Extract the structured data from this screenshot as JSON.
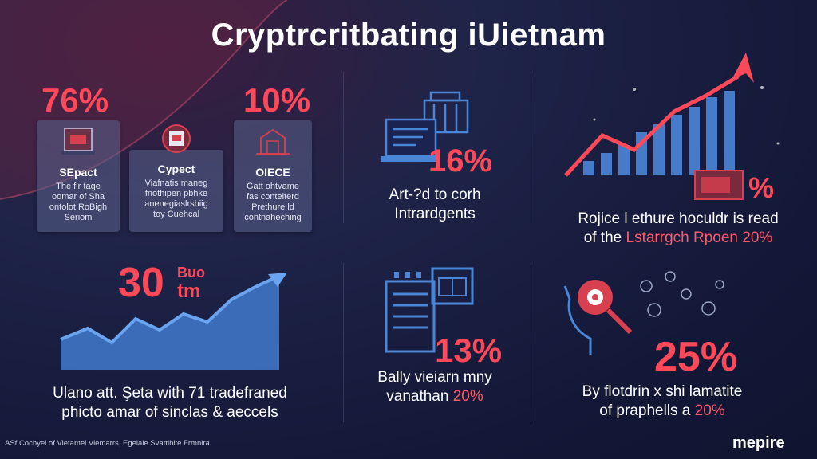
{
  "title": "Cryptrcritbating iUietnam",
  "panel1": {
    "cards": [
      {
        "pct": "76%",
        "title": "SEpact",
        "body": [
          "The fir tage",
          "oomar of Sha",
          "ontolot RoBigh",
          "Seriom"
        ]
      },
      {
        "pct": "",
        "title": "Cypect",
        "body": [
          "Viafnatis maneg",
          "fnothipen pbhke",
          "anenegiaslrshiig",
          "toy Cuehcal"
        ]
      },
      {
        "pct": "10%",
        "title": "OIECE",
        "body": [
          "Gatt ohtvame",
          "fas contelterd",
          "Prethure ld",
          "contnaheching"
        ]
      }
    ]
  },
  "panel2": {
    "pct": "16%",
    "caption": [
      "Art-?d to corh",
      "Intrardgents"
    ]
  },
  "panel3": {
    "pct": "%",
    "caption_l1": "Rojice l ethure hoculdr is read",
    "caption_l2a": "of the",
    "caption_l2b": "Lstarrgch Rpoen 20%"
  },
  "panel4": {
    "pct": "30",
    "pct_small_1": "Buo",
    "pct_small_2": "tm",
    "caption": [
      "Ulano att. Şeta with 71 tradefraned",
      "phicto amar of sinclas & aeccels"
    ]
  },
  "panel5": {
    "pct": "13%",
    "caption_l1": "Bally vieiarn mny",
    "caption_l2a": "vanathan",
    "caption_l2b": "20%"
  },
  "panel6": {
    "pct": "25%",
    "caption_l1": "By flotdrin x shi lamatite",
    "caption_l2a": "of praphells a",
    "caption_l2b": "20%"
  },
  "footer": {
    "credit": "ASf Cochyel of Vietamel Viemarrs, Egelale Svattibite Frmnira",
    "brand": "mepire"
  },
  "colors": {
    "accent": "#ff4858",
    "bar_blue": "#4a86d8",
    "card_bg": "#5a628c",
    "background": "#15193a"
  }
}
